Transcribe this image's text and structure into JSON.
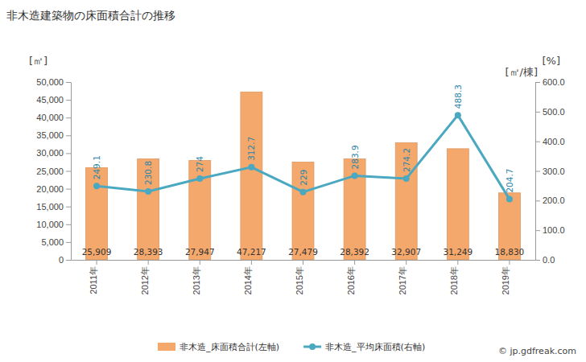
{
  "chart_data": {
    "type": "bar",
    "title": "非木造建築物の床面積合計の推移",
    "y_label": "[㎡]",
    "y2_label": "[㎡/棟]",
    "annotations": [
      "[%]",
      "© jp.gdfreak.com"
    ],
    "categories": [
      "2011年",
      "2012年",
      "2013年",
      "2014年",
      "2015年",
      "2016年",
      "2017年",
      "2018年",
      "2019年"
    ],
    "series": [
      {
        "name": "非木造_床面積合計(左軸)",
        "type": "bar",
        "color": "#f5a86b",
        "values": [
          25909,
          28393,
          27947,
          47217,
          27479,
          28392,
          32907,
          31249,
          18830
        ],
        "value_labels": [
          "25,909",
          "28,393",
          "27,947",
          "47,217",
          "27,479",
          "28,392",
          "32,907",
          "31,249",
          "18,830"
        ]
      },
      {
        "name": "非木造_平均床面積(右軸)",
        "type": "line",
        "axis": "y2",
        "color": "#4aa8c0",
        "marker": "circle",
        "values": [
          249.1,
          230.8,
          274,
          312.7,
          229,
          283.9,
          274.2,
          488.3,
          204.7
        ]
      }
    ],
    "ylim": [
      0,
      50000
    ],
    "yticks": [
      0,
      {
        "value": 5000,
        "label": "5,000"
      },
      {
        "value": 10000,
        "label": "10,000"
      },
      {
        "value": 15000,
        "label": "15,000"
      },
      {
        "value": 20000,
        "label": "20,000"
      },
      {
        "value": 25000,
        "label": "25,000"
      },
      {
        "value": 30000,
        "label": "30,000"
      },
      {
        "value": 35000,
        "label": "35,000"
      },
      {
        "value": 40000,
        "label": "40,000"
      },
      {
        "value": 45000,
        "label": "45,000"
      },
      {
        "value": 50000,
        "label": "50,000"
      }
    ],
    "y2lim": [
      0,
      600
    ],
    "y2ticks": [
      {
        "value": 0,
        "label": "0.0"
      },
      {
        "value": 100,
        "label": "100.0"
      },
      {
        "value": 200,
        "label": "200.0"
      },
      {
        "value": 300,
        "label": "300.0"
      },
      {
        "value": 400,
        "label": "400.0"
      },
      {
        "value": 500,
        "label": "500.0"
      },
      {
        "value": 600,
        "label": "600.0"
      }
    ],
    "grid": false,
    "data_labels": true,
    "legend": "bottom"
  }
}
